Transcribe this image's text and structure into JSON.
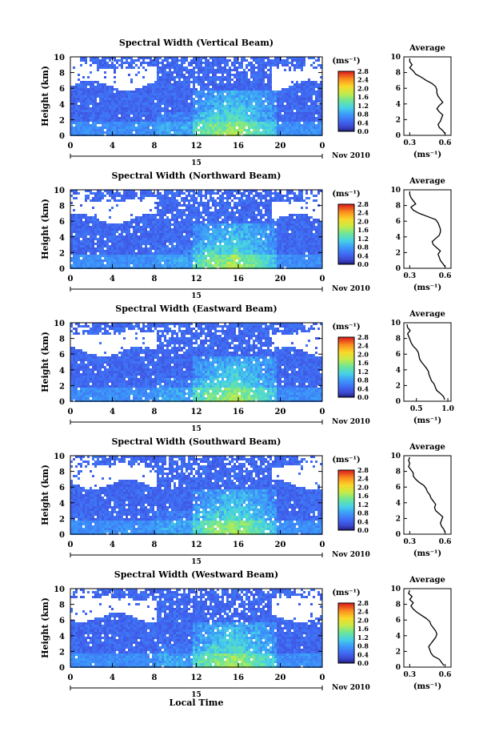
{
  "figure": {
    "xlabel_shared": "Local Time",
    "date_label": "Nov 2010",
    "day_label": "15",
    "unit_label": "(ms⁻¹)",
    "profile_title": "Average",
    "profile_xlabel": "(ms⁻¹)"
  },
  "chart_data": [
    {
      "type": "heatmap",
      "title": "Spectral Width (Vertical Beam)",
      "ylabel": "Height (km)",
      "xlabel": "",
      "x_ticks": [
        "0",
        "4",
        "8",
        "12",
        "16",
        "20",
        "0"
      ],
      "xlim": [
        0,
        24
      ],
      "y_ticks": [
        "0",
        "2",
        "4",
        "6",
        "8",
        "10"
      ],
      "ylim": [
        0,
        10
      ],
      "colorbar": {
        "ticks": [
          "0.0",
          "0.4",
          "0.8",
          "1.2",
          "1.6",
          "2.0",
          "2.4",
          "2.8"
        ],
        "range": [
          0,
          2.8
        ]
      },
      "profile": {
        "title": "Average",
        "x_ticks": [
          "0.3",
          "0.6"
        ],
        "xlim": [
          0.25,
          0.65
        ],
        "y_ticks": [
          "0",
          "2",
          "4",
          "6",
          "8",
          "10"
        ],
        "height_km": [
          0.2,
          0.6,
          1.0,
          1.4,
          1.8,
          2.2,
          2.6,
          3.0,
          3.4,
          3.8,
          4.2,
          4.6,
          5.0,
          5.4,
          5.8,
          6.2,
          6.6,
          7.0,
          7.4,
          7.8,
          8.2,
          8.6,
          9.0,
          9.4,
          9.8
        ],
        "values": [
          0.6,
          0.58,
          0.55,
          0.54,
          0.56,
          0.57,
          0.58,
          0.55,
          0.53,
          0.55,
          0.58,
          0.56,
          0.54,
          0.53,
          0.53,
          0.52,
          0.49,
          0.44,
          0.4,
          0.35,
          0.33,
          0.3,
          0.32,
          0.3,
          0.3
        ]
      }
    },
    {
      "type": "heatmap",
      "title": "Spectral Width (Northward Beam)",
      "ylabel": "Height (km)",
      "xlabel": "",
      "x_ticks": [
        "0",
        "4",
        "8",
        "12",
        "16",
        "20",
        "0"
      ],
      "xlim": [
        0,
        24
      ],
      "y_ticks": [
        "0",
        "2",
        "4",
        "6",
        "8",
        "10"
      ],
      "ylim": [
        0,
        10
      ],
      "colorbar": {
        "ticks": [
          "0.0",
          "0.4",
          "0.8",
          "1.2",
          "1.6",
          "2.0",
          "2.4",
          "2.8"
        ],
        "range": [
          0,
          2.8
        ]
      },
      "profile": {
        "title": "Average",
        "x_ticks": [
          "0.3",
          "0.6"
        ],
        "xlim": [
          0.25,
          0.65
        ],
        "y_ticks": [
          "0",
          "2",
          "4",
          "6",
          "8",
          "10"
        ],
        "height_km": [
          0.2,
          0.6,
          1.0,
          1.4,
          1.8,
          2.2,
          2.6,
          3.0,
          3.4,
          3.8,
          4.2,
          4.6,
          5.0,
          5.4,
          5.8,
          6.2,
          6.6,
          7.0,
          7.4,
          7.8,
          8.2,
          8.6,
          9.0,
          9.4,
          9.8
        ],
        "values": [
          0.6,
          0.58,
          0.56,
          0.55,
          0.54,
          0.56,
          0.53,
          0.5,
          0.49,
          0.52,
          0.55,
          0.56,
          0.56,
          0.55,
          0.54,
          0.52,
          0.45,
          0.38,
          0.33,
          0.31,
          0.35,
          0.33,
          0.31,
          0.3,
          0.3
        ]
      }
    },
    {
      "type": "heatmap",
      "title": "Spectral Width (Eastward Beam)",
      "ylabel": "Height (km)",
      "xlabel": "",
      "x_ticks": [
        "0",
        "4",
        "8",
        "12",
        "16",
        "20",
        "0"
      ],
      "xlim": [
        0,
        24
      ],
      "y_ticks": [
        "0",
        "2",
        "4",
        "6",
        "8",
        "10"
      ],
      "ylim": [
        0,
        10
      ],
      "colorbar": {
        "ticks": [
          "0.0",
          "0.4",
          "0.8",
          "1.2",
          "1.6",
          "2.0",
          "2.4",
          "2.8"
        ],
        "range": [
          0,
          2.8
        ]
      },
      "profile": {
        "title": "Average",
        "x_ticks": [
          "0.5",
          "1.0"
        ],
        "xlim": [
          0.3,
          1.05
        ],
        "y_ticks": [
          "0",
          "2",
          "4",
          "6",
          "8",
          "10"
        ],
        "height_km": [
          0.2,
          0.6,
          1.0,
          1.4,
          1.8,
          2.2,
          2.6,
          3.0,
          3.4,
          3.8,
          4.2,
          4.6,
          5.0,
          5.4,
          5.8,
          6.2,
          6.6,
          7.0,
          7.4,
          7.8,
          8.2,
          8.6,
          9.0,
          9.4,
          9.8
        ],
        "values": [
          0.95,
          0.93,
          0.88,
          0.82,
          0.8,
          0.78,
          0.74,
          0.72,
          0.7,
          0.69,
          0.66,
          0.62,
          0.58,
          0.55,
          0.54,
          0.53,
          0.5,
          0.45,
          0.42,
          0.4,
          0.38,
          0.36,
          0.4,
          0.36,
          0.35
        ]
      }
    },
    {
      "type": "heatmap",
      "title": "Spectral Width (Southward Beam)",
      "ylabel": "Height (km)",
      "xlabel": "",
      "x_ticks": [
        "0",
        "4",
        "8",
        "12",
        "16",
        "20",
        "0"
      ],
      "xlim": [
        0,
        24
      ],
      "y_ticks": [
        "0",
        "2",
        "4",
        "6",
        "8",
        "10"
      ],
      "ylim": [
        0,
        10
      ],
      "colorbar": {
        "ticks": [
          "0.0",
          "0.4",
          "0.8",
          "1.2",
          "1.6",
          "2.0",
          "2.4",
          "2.8"
        ],
        "range": [
          0,
          2.8
        ]
      },
      "profile": {
        "title": "Average",
        "x_ticks": [
          "0.3",
          "0.6"
        ],
        "xlim": [
          0.25,
          0.65
        ],
        "y_ticks": [
          "0",
          "2",
          "4",
          "6",
          "8",
          "10"
        ],
        "height_km": [
          0.2,
          0.6,
          1.0,
          1.4,
          1.8,
          2.2,
          2.6,
          3.0,
          3.4,
          3.8,
          4.2,
          4.6,
          5.0,
          5.4,
          5.8,
          6.2,
          6.6,
          7.0,
          7.4,
          7.8,
          8.2,
          8.6,
          9.0,
          9.4,
          9.8
        ],
        "values": [
          0.6,
          0.59,
          0.57,
          0.56,
          0.57,
          0.58,
          0.55,
          0.52,
          0.51,
          0.52,
          0.5,
          0.48,
          0.47,
          0.45,
          0.44,
          0.42,
          0.38,
          0.35,
          0.33,
          0.33,
          0.31,
          0.29,
          0.3,
          0.29,
          0.3
        ]
      }
    },
    {
      "type": "heatmap",
      "title": "Spectral Width (Westward Beam)",
      "ylabel": "Height (km)",
      "xlabel": "Local Time",
      "x_ticks": [
        "0",
        "4",
        "8",
        "12",
        "16",
        "20",
        "0"
      ],
      "xlim": [
        0,
        24
      ],
      "y_ticks": [
        "0",
        "2",
        "4",
        "6",
        "8",
        "10"
      ],
      "ylim": [
        0,
        10
      ],
      "colorbar": {
        "ticks": [
          "0.0",
          "0.4",
          "0.8",
          "1.2",
          "1.6",
          "2.0",
          "2.4",
          "2.8"
        ],
        "range": [
          0,
          2.8
        ]
      },
      "profile": {
        "title": "Average",
        "x_ticks": [
          "0.3",
          "0.6"
        ],
        "xlim": [
          0.25,
          0.65
        ],
        "y_ticks": [
          "0",
          "2",
          "4",
          "6",
          "8",
          "10"
        ],
        "height_km": [
          0.2,
          0.6,
          1.0,
          1.4,
          1.8,
          2.2,
          2.6,
          3.0,
          3.4,
          3.8,
          4.2,
          4.6,
          5.0,
          5.4,
          5.8,
          6.2,
          6.6,
          7.0,
          7.4,
          7.8,
          8.2,
          8.6,
          9.0,
          9.4,
          9.8
        ],
        "values": [
          0.59,
          0.57,
          0.55,
          0.5,
          0.48,
          0.47,
          0.46,
          0.48,
          0.5,
          0.52,
          0.53,
          0.52,
          0.5,
          0.48,
          0.47,
          0.44,
          0.4,
          0.36,
          0.33,
          0.31,
          0.33,
          0.3,
          0.32,
          0.29,
          0.3
        ]
      }
    }
  ]
}
